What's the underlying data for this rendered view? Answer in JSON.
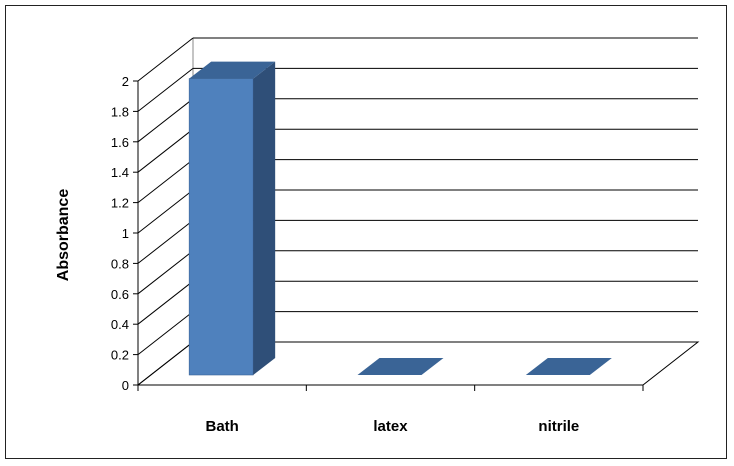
{
  "chart_data": {
    "type": "bar",
    "style": "3d-column",
    "categories": [
      "Bath",
      "latex",
      "nitrile"
    ],
    "series": [
      {
        "values": [
          1.95,
          0,
          0
        ]
      }
    ],
    "title": "",
    "xlabel": "",
    "ylabel": "Absorbance",
    "ylim": [
      0,
      2
    ],
    "yticks": [
      "0",
      "0.2",
      "0.4",
      "0.6",
      "0.8",
      "1",
      "1.2",
      "1.4",
      "1.6",
      "1.8",
      "2"
    ],
    "grid": true,
    "legend": "none",
    "colors": {
      "bar_front": "#4F81BD",
      "bar_side": "#2F4F78",
      "bar_top": "#3A6496",
      "grid": "#000000",
      "border": "#222222"
    }
  }
}
